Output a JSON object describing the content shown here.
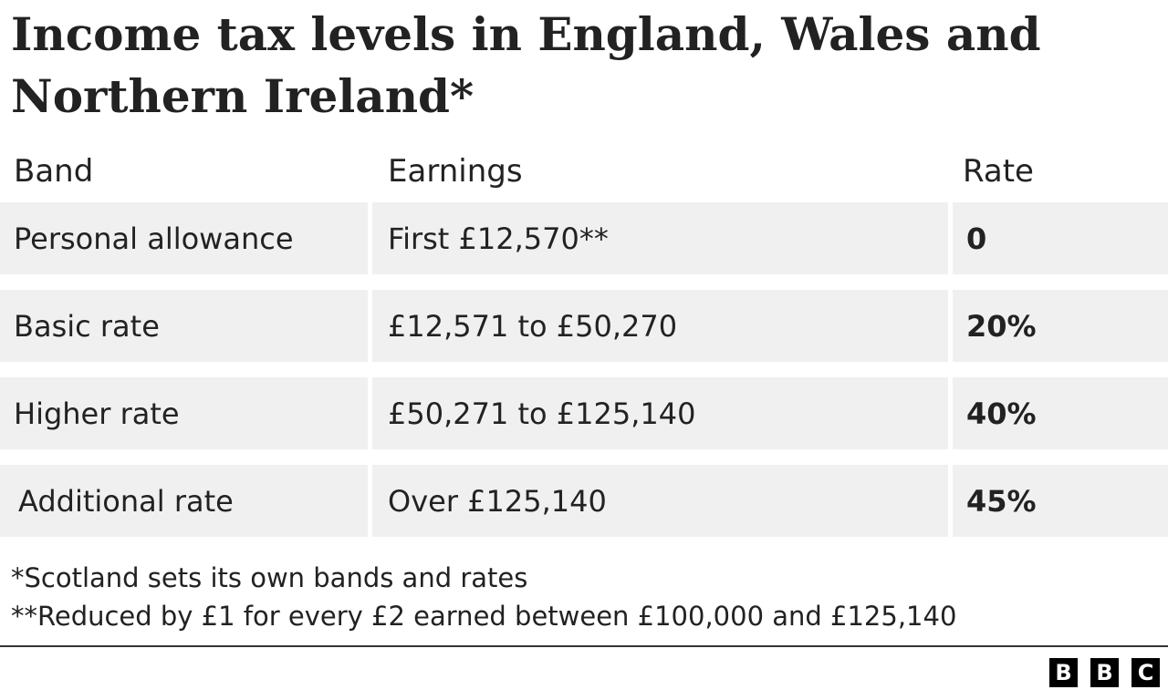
{
  "header": {
    "title": "Income tax levels in England, Wales and Northern Ireland*"
  },
  "table": {
    "columns": [
      "Band",
      "Earnings",
      "Rate"
    ],
    "rows": [
      [
        "Personal allowance",
        "First £12,570**",
        "0"
      ],
      [
        "Basic rate",
        "£12,571 to £50,270",
        "20%"
      ],
      [
        "Higher rate",
        "£50,271 to £125,140",
        "40%"
      ],
      [
        "Additional rate",
        "Over £125,140",
        "45%"
      ]
    ]
  },
  "footnotes": [
    "*Scotland sets its own bands and rates",
    "**Reduced by £1 for every £2 earned between £100,000 and £125,140"
  ],
  "logo": [
    "B",
    "B",
    "C"
  ]
}
